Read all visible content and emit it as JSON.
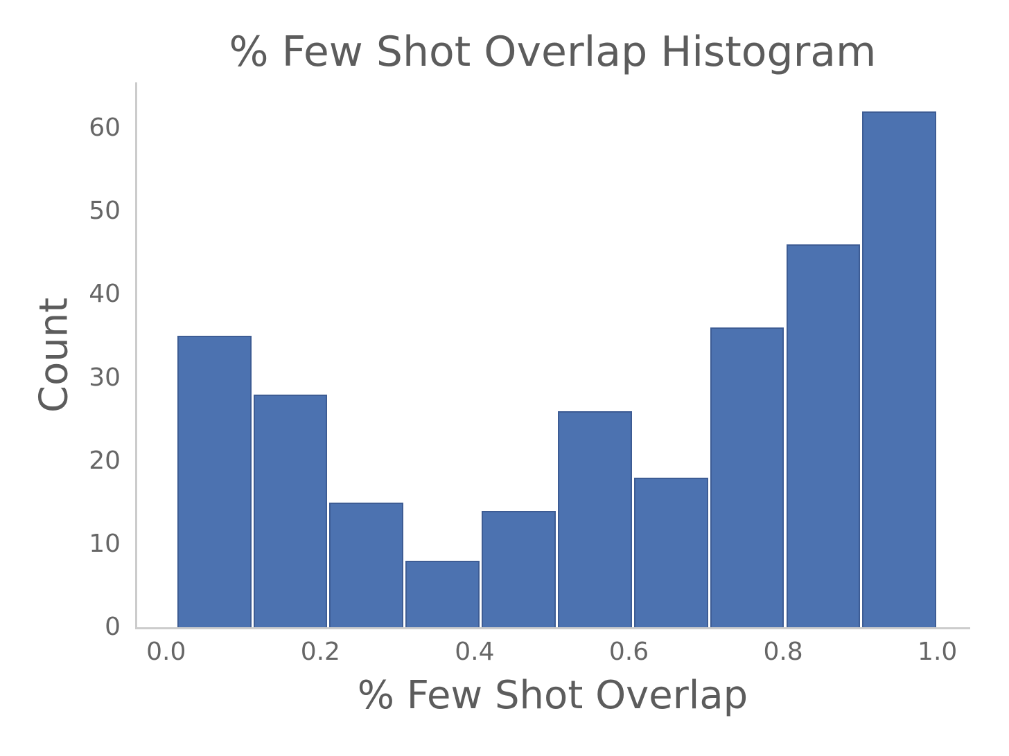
{
  "chart_data": {
    "type": "bar",
    "subtype": "histogram",
    "title": "% Few Shot Overlap Histogram",
    "xlabel": "% Few Shot Overlap",
    "ylabel": "Count",
    "bin_edges": [
      0.013,
      0.1117,
      0.2104,
      0.3091,
      0.4078,
      0.5065,
      0.6052,
      0.7039,
      0.8026,
      0.9013,
      1.0
    ],
    "values": [
      35,
      28,
      15,
      8,
      14,
      26,
      18,
      36,
      46,
      62
    ],
    "x_ticks": [
      "0.0",
      "0.2",
      "0.4",
      "0.6",
      "0.8",
      "1.0"
    ],
    "x_tick_values": [
      0.0,
      0.2,
      0.4,
      0.6,
      0.8,
      1.0
    ],
    "y_ticks": [
      "0",
      "10",
      "20",
      "30",
      "40",
      "50",
      "60"
    ],
    "y_tick_values": [
      0,
      10,
      20,
      30,
      40,
      50,
      60
    ],
    "xlim": [
      -0.0375,
      1.0425
    ],
    "ylim": [
      0,
      65.5
    ],
    "grid": false,
    "legend": false,
    "tick_marks": false,
    "spines": [
      "left",
      "bottom"
    ],
    "colors": {
      "bar_fill": "#4C72B0",
      "bar_edge": "#3D5C94",
      "spine": "#cccccc",
      "label_text": "#5c5c5c",
      "tick_text": "#666666",
      "background": "#ffffff"
    }
  }
}
